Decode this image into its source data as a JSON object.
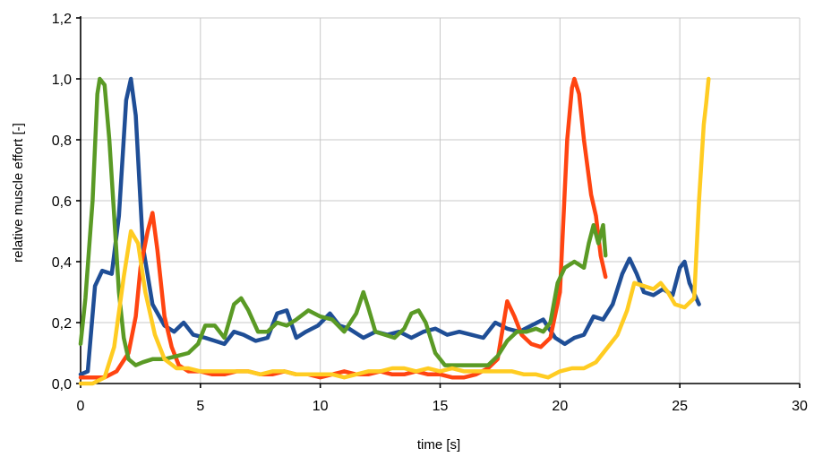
{
  "chart_data": {
    "type": "line",
    "xlabel": "time [s]",
    "ylabel": "relative muscle effort [-]",
    "xlim": [
      0,
      30
    ],
    "ylim": [
      0,
      1.2
    ],
    "xticks": [
      "0",
      "5",
      "10",
      "15",
      "20",
      "25",
      "30"
    ],
    "yticks": [
      "0,0",
      "0,2",
      "0,4",
      "0,6",
      "0,8",
      "1,0",
      "1,2"
    ],
    "grid": true,
    "series": [
      {
        "color": "#1f4e96",
        "points": [
          [
            0.0,
            0.03
          ],
          [
            0.3,
            0.04
          ],
          [
            0.6,
            0.32
          ],
          [
            0.9,
            0.37
          ],
          [
            1.3,
            0.36
          ],
          [
            1.6,
            0.55
          ],
          [
            1.9,
            0.93
          ],
          [
            2.1,
            1.0
          ],
          [
            2.3,
            0.88
          ],
          [
            2.6,
            0.45
          ],
          [
            3.0,
            0.26
          ],
          [
            3.5,
            0.19
          ],
          [
            3.9,
            0.17
          ],
          [
            4.3,
            0.2
          ],
          [
            4.7,
            0.16
          ],
          [
            5.2,
            0.15
          ],
          [
            5.6,
            0.14
          ],
          [
            6.0,
            0.13
          ],
          [
            6.4,
            0.17
          ],
          [
            6.8,
            0.16
          ],
          [
            7.3,
            0.14
          ],
          [
            7.8,
            0.15
          ],
          [
            8.2,
            0.23
          ],
          [
            8.6,
            0.24
          ],
          [
            9.0,
            0.15
          ],
          [
            9.4,
            0.17
          ],
          [
            9.9,
            0.19
          ],
          [
            10.4,
            0.23
          ],
          [
            10.8,
            0.19
          ],
          [
            11.2,
            0.18
          ],
          [
            11.8,
            0.15
          ],
          [
            12.3,
            0.17
          ],
          [
            12.8,
            0.16
          ],
          [
            13.3,
            0.17
          ],
          [
            13.8,
            0.15
          ],
          [
            14.3,
            0.17
          ],
          [
            14.8,
            0.18
          ],
          [
            15.3,
            0.16
          ],
          [
            15.8,
            0.17
          ],
          [
            16.3,
            0.16
          ],
          [
            16.8,
            0.15
          ],
          [
            17.3,
            0.2
          ],
          [
            17.8,
            0.18
          ],
          [
            18.3,
            0.17
          ],
          [
            18.8,
            0.19
          ],
          [
            19.3,
            0.21
          ],
          [
            19.8,
            0.15
          ],
          [
            20.2,
            0.13
          ],
          [
            20.6,
            0.15
          ],
          [
            21.0,
            0.16
          ],
          [
            21.4,
            0.22
          ],
          [
            21.8,
            0.21
          ],
          [
            22.2,
            0.26
          ],
          [
            22.6,
            0.36
          ],
          [
            22.9,
            0.41
          ],
          [
            23.2,
            0.36
          ],
          [
            23.5,
            0.3
          ],
          [
            23.9,
            0.29
          ],
          [
            24.3,
            0.31
          ],
          [
            24.7,
            0.29
          ],
          [
            25.0,
            0.38
          ],
          [
            25.2,
            0.4
          ],
          [
            25.4,
            0.33
          ],
          [
            25.8,
            0.26
          ]
        ]
      },
      {
        "color": "#ff4411",
        "points": [
          [
            0.0,
            0.02
          ],
          [
            0.5,
            0.02
          ],
          [
            1.0,
            0.02
          ],
          [
            1.5,
            0.04
          ],
          [
            2.0,
            0.1
          ],
          [
            2.3,
            0.22
          ],
          [
            2.5,
            0.38
          ],
          [
            2.8,
            0.5
          ],
          [
            3.0,
            0.56
          ],
          [
            3.2,
            0.44
          ],
          [
            3.5,
            0.22
          ],
          [
            3.8,
            0.12
          ],
          [
            4.1,
            0.06
          ],
          [
            4.5,
            0.04
          ],
          [
            5.0,
            0.04
          ],
          [
            5.5,
            0.03
          ],
          [
            6.0,
            0.03
          ],
          [
            6.5,
            0.04
          ],
          [
            7.0,
            0.04
          ],
          [
            7.5,
            0.03
          ],
          [
            8.0,
            0.03
          ],
          [
            8.5,
            0.04
          ],
          [
            9.0,
            0.03
          ],
          [
            9.5,
            0.03
          ],
          [
            10.0,
            0.02
          ],
          [
            10.5,
            0.03
          ],
          [
            11.0,
            0.04
          ],
          [
            11.5,
            0.03
          ],
          [
            12.0,
            0.03
          ],
          [
            12.5,
            0.04
          ],
          [
            13.0,
            0.03
          ],
          [
            13.5,
            0.03
          ],
          [
            14.0,
            0.04
          ],
          [
            14.5,
            0.03
          ],
          [
            15.0,
            0.03
          ],
          [
            15.5,
            0.02
          ],
          [
            16.0,
            0.02
          ],
          [
            16.5,
            0.03
          ],
          [
            17.0,
            0.05
          ],
          [
            17.4,
            0.08
          ],
          [
            17.8,
            0.27
          ],
          [
            18.1,
            0.22
          ],
          [
            18.4,
            0.16
          ],
          [
            18.8,
            0.13
          ],
          [
            19.2,
            0.12
          ],
          [
            19.6,
            0.15
          ],
          [
            20.0,
            0.3
          ],
          [
            20.3,
            0.8
          ],
          [
            20.5,
            0.97
          ],
          [
            20.6,
            1.0
          ],
          [
            20.8,
            0.95
          ],
          [
            21.0,
            0.8
          ],
          [
            21.3,
            0.62
          ],
          [
            21.5,
            0.55
          ],
          [
            21.7,
            0.42
          ],
          [
            21.9,
            0.35
          ]
        ]
      },
      {
        "color": "#5a9a25",
        "points": [
          [
            0.0,
            0.13
          ],
          [
            0.2,
            0.28
          ],
          [
            0.5,
            0.6
          ],
          [
            0.7,
            0.95
          ],
          [
            0.8,
            1.0
          ],
          [
            1.0,
            0.98
          ],
          [
            1.2,
            0.8
          ],
          [
            1.4,
            0.55
          ],
          [
            1.6,
            0.3
          ],
          [
            1.8,
            0.15
          ],
          [
            2.0,
            0.08
          ],
          [
            2.3,
            0.06
          ],
          [
            2.6,
            0.07
          ],
          [
            3.0,
            0.08
          ],
          [
            3.5,
            0.08
          ],
          [
            4.0,
            0.09
          ],
          [
            4.5,
            0.1
          ],
          [
            4.9,
            0.13
          ],
          [
            5.2,
            0.19
          ],
          [
            5.6,
            0.19
          ],
          [
            6.0,
            0.15
          ],
          [
            6.4,
            0.26
          ],
          [
            6.7,
            0.28
          ],
          [
            7.0,
            0.24
          ],
          [
            7.4,
            0.17
          ],
          [
            7.8,
            0.17
          ],
          [
            8.2,
            0.2
          ],
          [
            8.6,
            0.19
          ],
          [
            9.0,
            0.21
          ],
          [
            9.5,
            0.24
          ],
          [
            10.0,
            0.22
          ],
          [
            10.5,
            0.21
          ],
          [
            11.0,
            0.17
          ],
          [
            11.5,
            0.23
          ],
          [
            11.8,
            0.3
          ],
          [
            12.0,
            0.25
          ],
          [
            12.3,
            0.17
          ],
          [
            12.7,
            0.16
          ],
          [
            13.1,
            0.15
          ],
          [
            13.5,
            0.18
          ],
          [
            13.8,
            0.23
          ],
          [
            14.1,
            0.24
          ],
          [
            14.4,
            0.2
          ],
          [
            14.8,
            0.1
          ],
          [
            15.2,
            0.06
          ],
          [
            15.6,
            0.06
          ],
          [
            16.0,
            0.06
          ],
          [
            16.5,
            0.06
          ],
          [
            17.0,
            0.06
          ],
          [
            17.4,
            0.09
          ],
          [
            17.8,
            0.14
          ],
          [
            18.2,
            0.17
          ],
          [
            18.6,
            0.17
          ],
          [
            19.0,
            0.18
          ],
          [
            19.3,
            0.17
          ],
          [
            19.6,
            0.2
          ],
          [
            19.9,
            0.33
          ],
          [
            20.2,
            0.38
          ],
          [
            20.6,
            0.4
          ],
          [
            21.0,
            0.38
          ],
          [
            21.2,
            0.46
          ],
          [
            21.4,
            0.52
          ],
          [
            21.6,
            0.46
          ],
          [
            21.8,
            0.52
          ],
          [
            21.9,
            0.42
          ]
        ]
      },
      {
        "color": "#ffcc22",
        "points": [
          [
            0.0,
            0.0
          ],
          [
            0.5,
            0.0
          ],
          [
            1.0,
            0.02
          ],
          [
            1.4,
            0.12
          ],
          [
            1.8,
            0.35
          ],
          [
            2.1,
            0.5
          ],
          [
            2.4,
            0.46
          ],
          [
            2.7,
            0.3
          ],
          [
            3.1,
            0.16
          ],
          [
            3.5,
            0.08
          ],
          [
            4.0,
            0.05
          ],
          [
            4.5,
            0.05
          ],
          [
            5.0,
            0.04
          ],
          [
            5.5,
            0.04
          ],
          [
            6.0,
            0.04
          ],
          [
            6.5,
            0.04
          ],
          [
            7.0,
            0.04
          ],
          [
            7.5,
            0.03
          ],
          [
            8.0,
            0.04
          ],
          [
            8.5,
            0.04
          ],
          [
            9.0,
            0.03
          ],
          [
            9.5,
            0.03
          ],
          [
            10.0,
            0.03
          ],
          [
            10.5,
            0.03
          ],
          [
            11.0,
            0.02
          ],
          [
            11.5,
            0.03
          ],
          [
            12.0,
            0.04
          ],
          [
            12.5,
            0.04
          ],
          [
            13.0,
            0.05
          ],
          [
            13.5,
            0.05
          ],
          [
            14.0,
            0.04
          ],
          [
            14.5,
            0.05
          ],
          [
            15.0,
            0.04
          ],
          [
            15.5,
            0.05
          ],
          [
            16.0,
            0.04
          ],
          [
            16.5,
            0.04
          ],
          [
            17.0,
            0.04
          ],
          [
            17.5,
            0.04
          ],
          [
            18.0,
            0.04
          ],
          [
            18.5,
            0.03
          ],
          [
            19.0,
            0.03
          ],
          [
            19.5,
            0.02
          ],
          [
            20.0,
            0.04
          ],
          [
            20.5,
            0.05
          ],
          [
            21.0,
            0.05
          ],
          [
            21.5,
            0.07
          ],
          [
            22.0,
            0.12
          ],
          [
            22.4,
            0.16
          ],
          [
            22.8,
            0.24
          ],
          [
            23.1,
            0.33
          ],
          [
            23.5,
            0.32
          ],
          [
            23.9,
            0.31
          ],
          [
            24.2,
            0.33
          ],
          [
            24.5,
            0.3
          ],
          [
            24.8,
            0.26
          ],
          [
            25.2,
            0.25
          ],
          [
            25.6,
            0.28
          ],
          [
            25.8,
            0.6
          ],
          [
            26.0,
            0.85
          ],
          [
            26.1,
            0.92
          ],
          [
            26.2,
            1.0
          ]
        ]
      }
    ]
  }
}
